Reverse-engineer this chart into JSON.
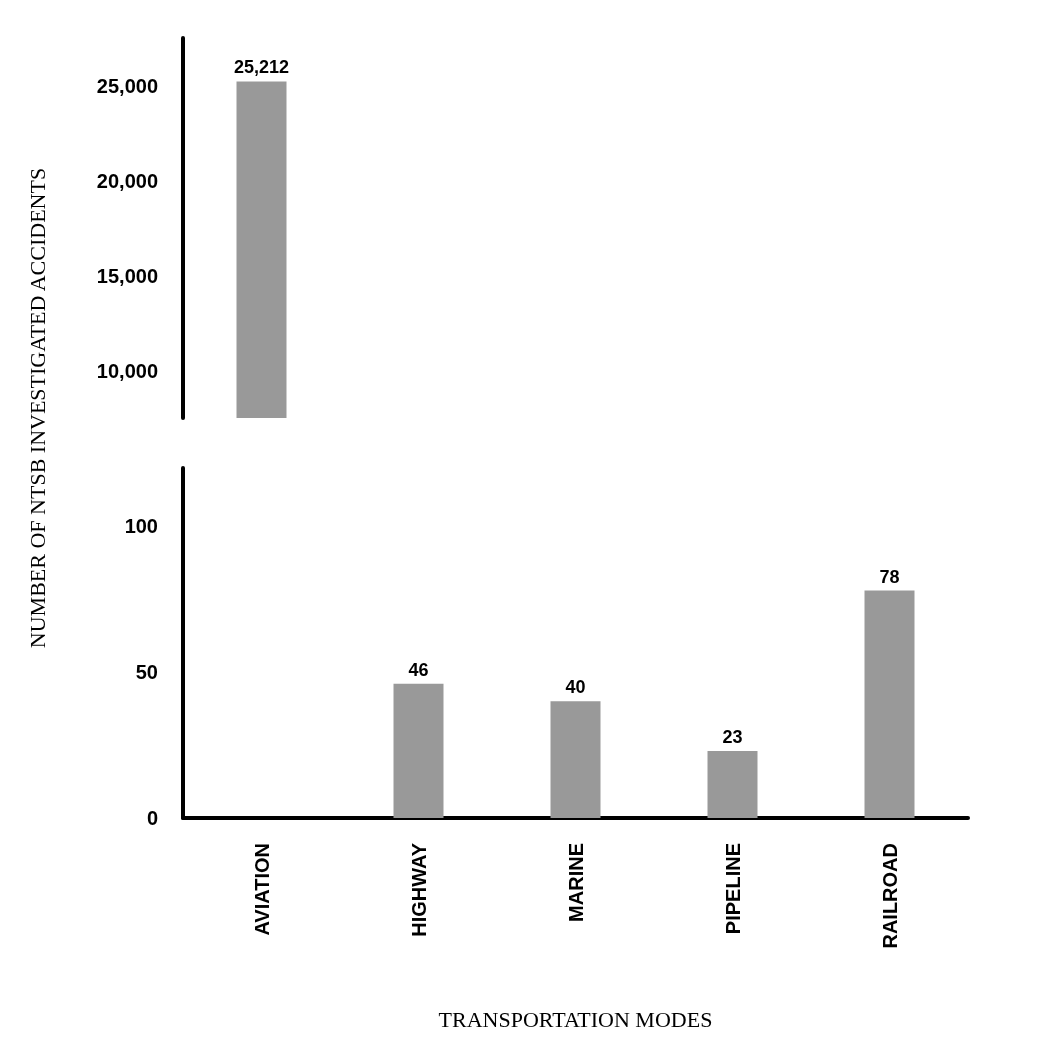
{
  "chart_data": [
    {
      "type": "bar",
      "categories": [
        null
      ],
      "values": [
        25212
      ],
      "value_labels": [
        "25,212"
      ],
      "color": "#999999",
      "ylim": [
        7500,
        27500
      ],
      "yticks": [
        {
          "value": 10000,
          "label": "10,000"
        },
        {
          "value": 15000,
          "label": "15,000"
        },
        {
          "value": 20000,
          "label": "20,000"
        },
        {
          "value": 25000,
          "label": "25,000"
        }
      ],
      "tick_labels": "y"
    },
    {
      "type": "bar",
      "categories": [
        "AVIATION",
        "HIGHWAY",
        "MARINE",
        "PIPELINE",
        "RAILROAD"
      ],
      "values": [
        null,
        46,
        40,
        23,
        78
      ],
      "color": "#999999",
      "ylim": [
        0,
        120
      ],
      "yticks": [
        0,
        50,
        100
      ],
      "data_labels": true,
      "xlabel": "TRANSPORTATION MODES",
      "ylabel": "NUMBER OF NTSB INVESTIGATED ACCIDENTS"
    }
  ]
}
